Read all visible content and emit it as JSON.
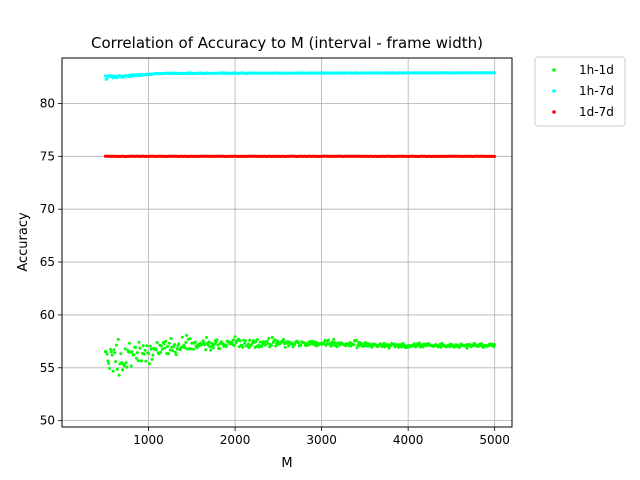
{
  "chart_data": {
    "type": "scatter",
    "title": "Correlation of Accuracy to M (interval - frame width)",
    "xlabel": "M",
    "ylabel": "Accuracy",
    "xlim": [
      0,
      5200
    ],
    "ylim": [
      49.4,
      84.3
    ],
    "xticks": [
      1000,
      2000,
      3000,
      4000,
      5000
    ],
    "yticks": [
      50,
      55,
      60,
      65,
      70,
      75,
      80
    ],
    "grid": true,
    "legend_position": "outside-top-right",
    "x_range": [
      500,
      5000
    ],
    "x_step": 10,
    "series": [
      {
        "name": "1h-1d",
        "color": "#00ff00",
        "profile": [
          {
            "x": 500,
            "y": 56.0,
            "spread": 3.5
          },
          {
            "x": 800,
            "y": 56.3,
            "spread": 2.2
          },
          {
            "x": 1200,
            "y": 57.0,
            "spread": 1.2
          },
          {
            "x": 2000,
            "y": 57.4,
            "spread": 0.8
          },
          {
            "x": 3000,
            "y": 57.3,
            "spread": 0.5
          },
          {
            "x": 4000,
            "y": 57.1,
            "spread": 0.35
          },
          {
            "x": 5000,
            "y": 57.1,
            "spread": 0.3
          }
        ]
      },
      {
        "name": "1h-7d",
        "color": "#00ffff",
        "profile": [
          {
            "x": 500,
            "y": 82.5,
            "spread": 0.3
          },
          {
            "x": 900,
            "y": 82.7,
            "spread": 0.15
          },
          {
            "x": 1200,
            "y": 82.85,
            "spread": 0.05
          },
          {
            "x": 5000,
            "y": 82.9,
            "spread": 0.02
          }
        ]
      },
      {
        "name": "1d-7d",
        "color": "#ff0000",
        "profile": [
          {
            "x": 500,
            "y": 75.0,
            "spread": 0.02
          },
          {
            "x": 5000,
            "y": 75.0,
            "spread": 0.02
          }
        ]
      }
    ]
  }
}
